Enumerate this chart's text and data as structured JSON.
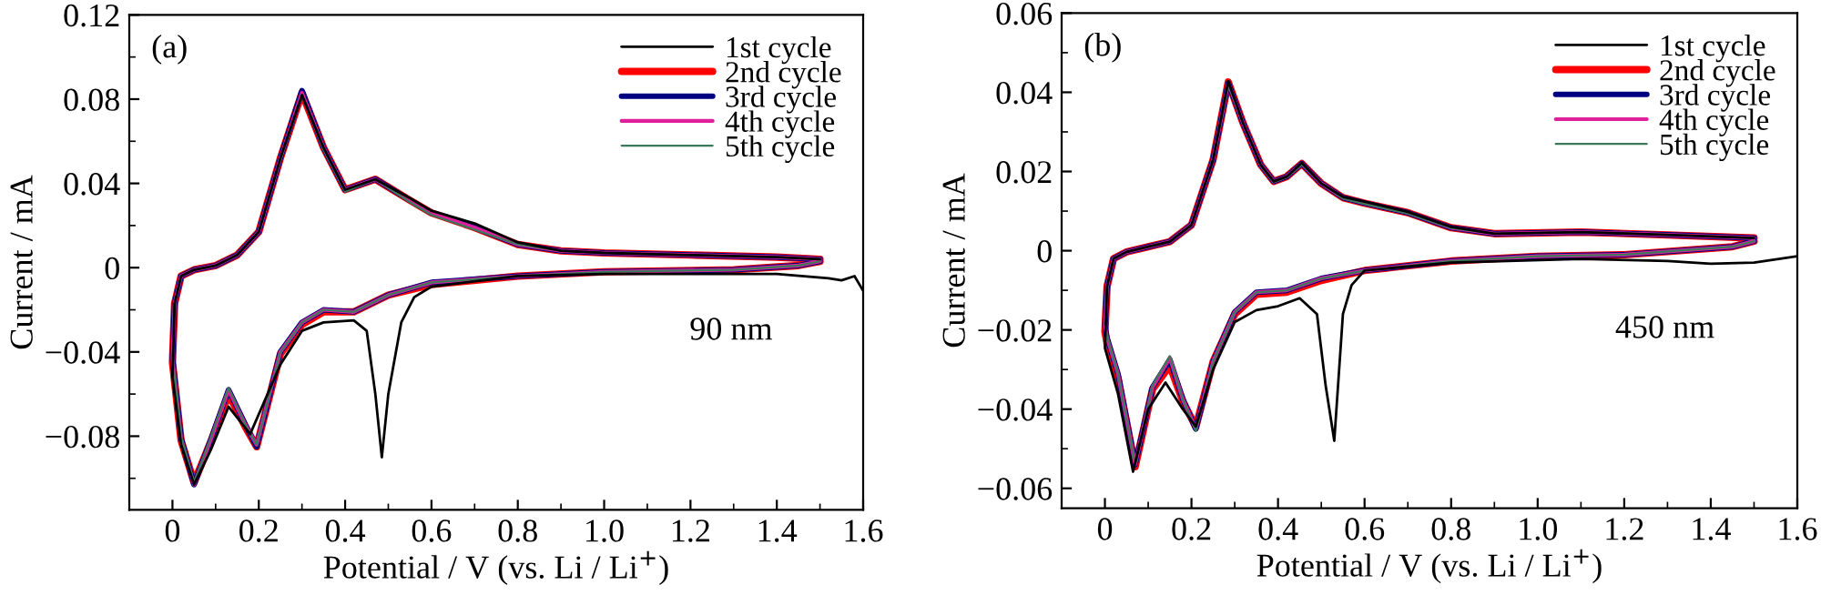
{
  "chart_data": [
    {
      "type": "line",
      "xlabel": "Potential / V (vs. Li / Li$^{+}$)",
      "ylabel": "Current / mA",
      "annotations": [
        "(a)",
        "90 nm"
      ],
      "legend": "top right",
      "xlim": [
        -0.1,
        1.6
      ],
      "ylim": [
        -0.115,
        0.12
      ],
      "xticks": [
        0,
        0.2,
        0.4,
        0.6,
        0.8,
        {
          "value": 1.0,
          "label": "1.0"
        },
        1.2,
        1.4,
        1.6
      ],
      "yticks": [
        -0.08,
        -0.04,
        0,
        0.04,
        0.08,
        0.12
      ],
      "series": [
        {
          "name": "1st cycle",
          "color": "#000000",
          "x": [
            1.6,
            1.58,
            1.55,
            1.52,
            1.4,
            1.0,
            0.8,
            0.6,
            0.56,
            0.53,
            0.5,
            0.485,
            0.47,
            0.45,
            0.42,
            0.35,
            0.3,
            0.25,
            0.18,
            0.13,
            0.09,
            0.05,
            0.02,
            0.0,
            0.005,
            0.02,
            0.05,
            0.1,
            0.15,
            0.2,
            0.25,
            0.3,
            0.35,
            0.4,
            0.47,
            0.55,
            0.6,
            0.7,
            0.8,
            0.9,
            1.0,
            1.2,
            1.4,
            1.5
          ],
          "values": [
            -0.011,
            -0.004,
            -0.006,
            -0.005,
            -0.003,
            -0.003,
            -0.004,
            -0.009,
            -0.014,
            -0.026,
            -0.06,
            -0.09,
            -0.06,
            -0.03,
            -0.025,
            -0.026,
            -0.03,
            -0.046,
            -0.079,
            -0.066,
            -0.086,
            -0.103,
            -0.084,
            -0.052,
            -0.017,
            -0.004,
            -0.001,
            0.001,
            0.006,
            0.017,
            0.052,
            0.082,
            0.057,
            0.037,
            0.042,
            0.033,
            0.027,
            0.021,
            0.012,
            0.008,
            0.007,
            0.006,
            0.005,
            0.004
          ]
        },
        {
          "name": "2nd cycle",
          "color": "#ff0000",
          "x": [
            1.5,
            1.45,
            1.3,
            1.0,
            0.8,
            0.6,
            0.5,
            0.42,
            0.35,
            0.3,
            0.25,
            0.195,
            0.17,
            0.13,
            0.09,
            0.05,
            0.02,
            0.0,
            0.005,
            0.02,
            0.05,
            0.1,
            0.15,
            0.2,
            0.25,
            0.3,
            0.35,
            0.4,
            0.47,
            0.55,
            0.6,
            0.7,
            0.8,
            0.9,
            1.0,
            1.2,
            1.4,
            1.5
          ],
          "values": [
            0.003,
            0.001,
            -0.001,
            -0.002,
            -0.004,
            -0.008,
            -0.013,
            -0.021,
            -0.021,
            -0.027,
            -0.041,
            -0.085,
            -0.076,
            -0.06,
            -0.082,
            -0.102,
            -0.082,
            -0.045,
            -0.017,
            -0.004,
            -0.001,
            0.001,
            0.006,
            0.017,
            0.052,
            0.083,
            0.057,
            0.037,
            0.042,
            0.032,
            0.026,
            0.019,
            0.011,
            0.008,
            0.007,
            0.006,
            0.005,
            0.004
          ]
        },
        {
          "name": "3rd cycle",
          "color": "#000080",
          "x": [
            1.5,
            1.45,
            1.3,
            1.0,
            0.8,
            0.6,
            0.5,
            0.42,
            0.35,
            0.3,
            0.25,
            0.195,
            0.17,
            0.13,
            0.09,
            0.05,
            0.02,
            0.0,
            0.005,
            0.02,
            0.05,
            0.1,
            0.15,
            0.2,
            0.25,
            0.3,
            0.35,
            0.4,
            0.47,
            0.55,
            0.6,
            0.7,
            0.8,
            0.9,
            1.0,
            1.2,
            1.4,
            1.5
          ],
          "values": [
            0.003,
            0.001,
            -0.001,
            -0.002,
            -0.004,
            -0.007,
            -0.013,
            -0.021,
            -0.02,
            -0.026,
            -0.04,
            -0.085,
            -0.075,
            -0.058,
            -0.081,
            -0.103,
            -0.081,
            -0.043,
            -0.017,
            -0.004,
            -0.001,
            0.001,
            0.006,
            0.017,
            0.052,
            0.084,
            0.057,
            0.037,
            0.042,
            0.032,
            0.026,
            0.019,
            0.011,
            0.008,
            0.007,
            0.006,
            0.005,
            0.004
          ]
        },
        {
          "name": "4th cycle",
          "color": "#e0209a",
          "x": [
            1.5,
            1.45,
            1.3,
            1.0,
            0.8,
            0.6,
            0.5,
            0.42,
            0.35,
            0.3,
            0.25,
            0.195,
            0.17,
            0.13,
            0.09,
            0.05,
            0.02,
            0.0,
            0.005,
            0.02,
            0.05,
            0.1,
            0.15,
            0.2,
            0.25,
            0.3,
            0.35,
            0.4,
            0.47,
            0.55,
            0.6,
            0.7,
            0.8,
            0.9,
            1.0,
            1.2,
            1.4,
            1.5
          ],
          "values": [
            0.003,
            0.001,
            -0.001,
            -0.002,
            -0.004,
            -0.007,
            -0.013,
            -0.021,
            -0.02,
            -0.026,
            -0.04,
            -0.084,
            -0.075,
            -0.058,
            -0.081,
            -0.103,
            -0.081,
            -0.043,
            -0.017,
            -0.004,
            -0.001,
            0.001,
            0.006,
            0.017,
            0.052,
            0.083,
            0.057,
            0.037,
            0.042,
            0.032,
            0.026,
            0.019,
            0.011,
            0.008,
            0.007,
            0.006,
            0.005,
            0.004
          ]
        },
        {
          "name": "5th cycle",
          "color": "#3a7a5a",
          "x": [
            1.5,
            1.45,
            1.3,
            1.0,
            0.8,
            0.6,
            0.5,
            0.42,
            0.35,
            0.3,
            0.25,
            0.195,
            0.17,
            0.13,
            0.09,
            0.05,
            0.02,
            0.0,
            0.005,
            0.02,
            0.05,
            0.1,
            0.15,
            0.2,
            0.25,
            0.3,
            0.35,
            0.4,
            0.47,
            0.55,
            0.6,
            0.7,
            0.8,
            0.9,
            1.0,
            1.2,
            1.4,
            1.5
          ],
          "values": [
            0.003,
            0.001,
            -0.001,
            -0.002,
            -0.004,
            -0.007,
            -0.013,
            -0.021,
            -0.02,
            -0.026,
            -0.04,
            -0.084,
            -0.075,
            -0.057,
            -0.08,
            -0.102,
            -0.08,
            -0.042,
            -0.017,
            -0.004,
            -0.001,
            0.001,
            0.006,
            0.017,
            0.051,
            0.082,
            0.056,
            0.036,
            0.042,
            0.031,
            0.025,
            0.018,
            0.011,
            0.008,
            0.007,
            0.006,
            0.005,
            0.004
          ]
        }
      ]
    },
    {
      "type": "line",
      "xlabel": "Potential / V (vs. Li / Li$^{+}$)",
      "ylabel": "Current / mA",
      "annotations": [
        "(b)",
        "450 nm"
      ],
      "legend": "top right",
      "xlim": [
        -0.1,
        1.6
      ],
      "ylim": [
        -0.065,
        0.06
      ],
      "xticks": [
        0,
        0.2,
        0.4,
        0.6,
        0.8,
        {
          "value": 1.0,
          "label": "1.0"
        },
        1.2,
        1.4,
        1.6
      ],
      "yticks": [
        -0.06,
        -0.04,
        -0.02,
        0,
        0.02,
        0.04,
        0.06
      ],
      "series": [
        {
          "name": "1st cycle",
          "color": "#000000",
          "x": [
            1.6,
            1.5,
            1.4,
            1.3,
            1.1,
            0.8,
            0.6,
            0.57,
            0.55,
            0.53,
            0.51,
            0.49,
            0.45,
            0.4,
            0.35,
            0.3,
            0.25,
            0.21,
            0.18,
            0.14,
            0.1,
            0.065,
            0.03,
            0.0,
            0.005,
            0.02,
            0.05,
            0.1,
            0.15,
            0.2,
            0.25,
            0.285,
            0.32,
            0.36,
            0.39,
            0.42,
            0.455,
            0.5,
            0.55,
            0.6,
            0.7,
            0.8,
            0.9,
            1.1,
            1.3,
            1.5
          ],
          "values": [
            -0.0014,
            -0.003,
            -0.0033,
            -0.0026,
            -0.0021,
            -0.003,
            -0.005,
            -0.0087,
            -0.016,
            -0.048,
            -0.034,
            -0.016,
            -0.012,
            -0.014,
            -0.015,
            -0.018,
            -0.03,
            -0.0444,
            -0.04,
            -0.0333,
            -0.04,
            -0.0558,
            -0.036,
            -0.0246,
            -0.009,
            -0.002,
            -0.0003,
            0.001,
            0.0023,
            0.0065,
            0.023,
            0.0428,
            0.032,
            0.0217,
            0.0175,
            0.0187,
            0.0222,
            0.017,
            0.0136,
            0.0124,
            0.0098,
            0.006,
            0.0043,
            0.0047,
            0.004,
            0.0032
          ]
        },
        {
          "name": "2nd cycle",
          "color": "#ff0000",
          "x": [
            1.5,
            1.45,
            1.2,
            1.0,
            0.8,
            0.6,
            0.5,
            0.42,
            0.35,
            0.3,
            0.25,
            0.21,
            0.18,
            0.15,
            0.11,
            0.07,
            0.03,
            0.005,
            0.0,
            0.005,
            0.02,
            0.05,
            0.1,
            0.15,
            0.2,
            0.25,
            0.285,
            0.32,
            0.36,
            0.39,
            0.42,
            0.455,
            0.5,
            0.55,
            0.6,
            0.7,
            0.8,
            0.9,
            1.1,
            1.3,
            1.5
          ],
          "values": [
            0.0024,
            0.001,
            -0.001,
            -0.0014,
            -0.0026,
            -0.005,
            -0.0075,
            -0.0105,
            -0.011,
            -0.016,
            -0.028,
            -0.0445,
            -0.038,
            -0.029,
            -0.035,
            -0.0545,
            -0.032,
            -0.0235,
            -0.0205,
            -0.009,
            -0.002,
            -0.0003,
            0.001,
            0.0023,
            0.0065,
            0.023,
            0.0426,
            0.032,
            0.0217,
            0.0175,
            0.0187,
            0.022,
            0.017,
            0.0134,
            0.012,
            0.0096,
            0.0058,
            0.0043,
            0.0047,
            0.004,
            0.0032
          ]
        },
        {
          "name": "3rd cycle",
          "color": "#000080",
          "x": [
            1.5,
            1.45,
            1.2,
            1.0,
            0.8,
            0.6,
            0.5,
            0.42,
            0.35,
            0.3,
            0.25,
            0.21,
            0.18,
            0.15,
            0.11,
            0.07,
            0.03,
            0.005,
            0.0,
            0.005,
            0.02,
            0.05,
            0.1,
            0.15,
            0.2,
            0.25,
            0.285,
            0.32,
            0.36,
            0.39,
            0.42,
            0.455,
            0.5,
            0.55,
            0.6,
            0.7,
            0.8,
            0.9,
            1.1,
            1.3,
            1.5
          ],
          "values": [
            0.0024,
            0.001,
            -0.001,
            -0.0014,
            -0.0026,
            -0.005,
            -0.007,
            -0.01,
            -0.0105,
            -0.0155,
            -0.028,
            -0.045,
            -0.0375,
            -0.0275,
            -0.0345,
            -0.054,
            -0.031,
            -0.022,
            -0.019,
            -0.009,
            -0.002,
            -0.0003,
            0.001,
            0.0023,
            0.0065,
            0.023,
            0.0424,
            0.032,
            0.0217,
            0.0175,
            0.0187,
            0.022,
            0.017,
            0.0134,
            0.012,
            0.0096,
            0.0058,
            0.0043,
            0.0047,
            0.004,
            0.0032
          ]
        },
        {
          "name": "4th cycle",
          "color": "#e0209a",
          "x": [
            1.5,
            1.45,
            1.2,
            1.0,
            0.8,
            0.6,
            0.5,
            0.42,
            0.35,
            0.3,
            0.25,
            0.21,
            0.18,
            0.15,
            0.11,
            0.07,
            0.03,
            0.005,
            0.0,
            0.005,
            0.02,
            0.05,
            0.1,
            0.15,
            0.2,
            0.25,
            0.285,
            0.32,
            0.36,
            0.39,
            0.42,
            0.455,
            0.5,
            0.55,
            0.6,
            0.7,
            0.8,
            0.9,
            1.1,
            1.3,
            1.5
          ],
          "values": [
            0.0024,
            0.001,
            -0.001,
            -0.0014,
            -0.0026,
            -0.005,
            -0.007,
            -0.01,
            -0.0105,
            -0.0155,
            -0.028,
            -0.045,
            -0.0375,
            -0.027,
            -0.0345,
            -0.054,
            -0.031,
            -0.022,
            -0.019,
            -0.009,
            -0.002,
            -0.0003,
            0.001,
            0.0023,
            0.0065,
            0.023,
            0.0424,
            0.032,
            0.0217,
            0.0175,
            0.0187,
            0.022,
            0.017,
            0.0134,
            0.012,
            0.0096,
            0.0058,
            0.0043,
            0.0047,
            0.004,
            0.0032
          ]
        },
        {
          "name": "5th cycle",
          "color": "#3a7a5a",
          "x": [
            1.5,
            1.45,
            1.2,
            1.0,
            0.8,
            0.6,
            0.5,
            0.42,
            0.35,
            0.3,
            0.25,
            0.21,
            0.18,
            0.15,
            0.11,
            0.07,
            0.03,
            0.005,
            0.0,
            0.005,
            0.02,
            0.05,
            0.1,
            0.15,
            0.2,
            0.25,
            0.285,
            0.32,
            0.36,
            0.39,
            0.42,
            0.455,
            0.5,
            0.55,
            0.6,
            0.7,
            0.8,
            0.9,
            1.1,
            1.3,
            1.5
          ],
          "values": [
            0.0024,
            0.001,
            -0.001,
            -0.0014,
            -0.0026,
            -0.005,
            -0.007,
            -0.01,
            -0.0105,
            -0.0155,
            -0.028,
            -0.0455,
            -0.0375,
            -0.0266,
            -0.034,
            -0.054,
            -0.031,
            -0.0215,
            -0.0185,
            -0.009,
            -0.002,
            -0.0003,
            0.001,
            0.0023,
            0.0065,
            0.023,
            0.042,
            0.032,
            0.0215,
            0.0173,
            0.0185,
            0.0218,
            0.017,
            0.0132,
            0.0118,
            0.0094,
            0.0057,
            0.0043,
            0.0047,
            0.004,
            0.0032
          ]
        }
      ]
    }
  ]
}
